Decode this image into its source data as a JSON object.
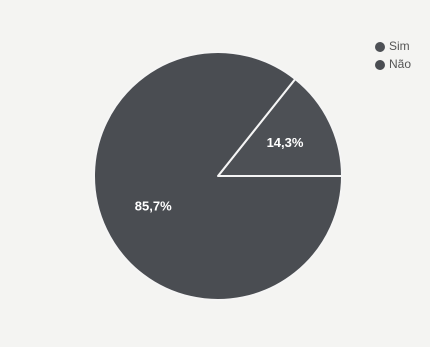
{
  "chart_data": {
    "type": "pie",
    "title": "",
    "categories": [
      "Sim",
      "Não"
    ],
    "values": [
      14.3,
      85.7
    ],
    "value_labels": [
      "14,3%",
      "85,7%"
    ],
    "start_angle_deg": 0,
    "direction": "counterclockwise",
    "legend_placement": "top-right",
    "colors": {
      "Sim": "#4d5055",
      "Não": "#4a4d52",
      "slice_border": "#f5f5f5"
    }
  }
}
